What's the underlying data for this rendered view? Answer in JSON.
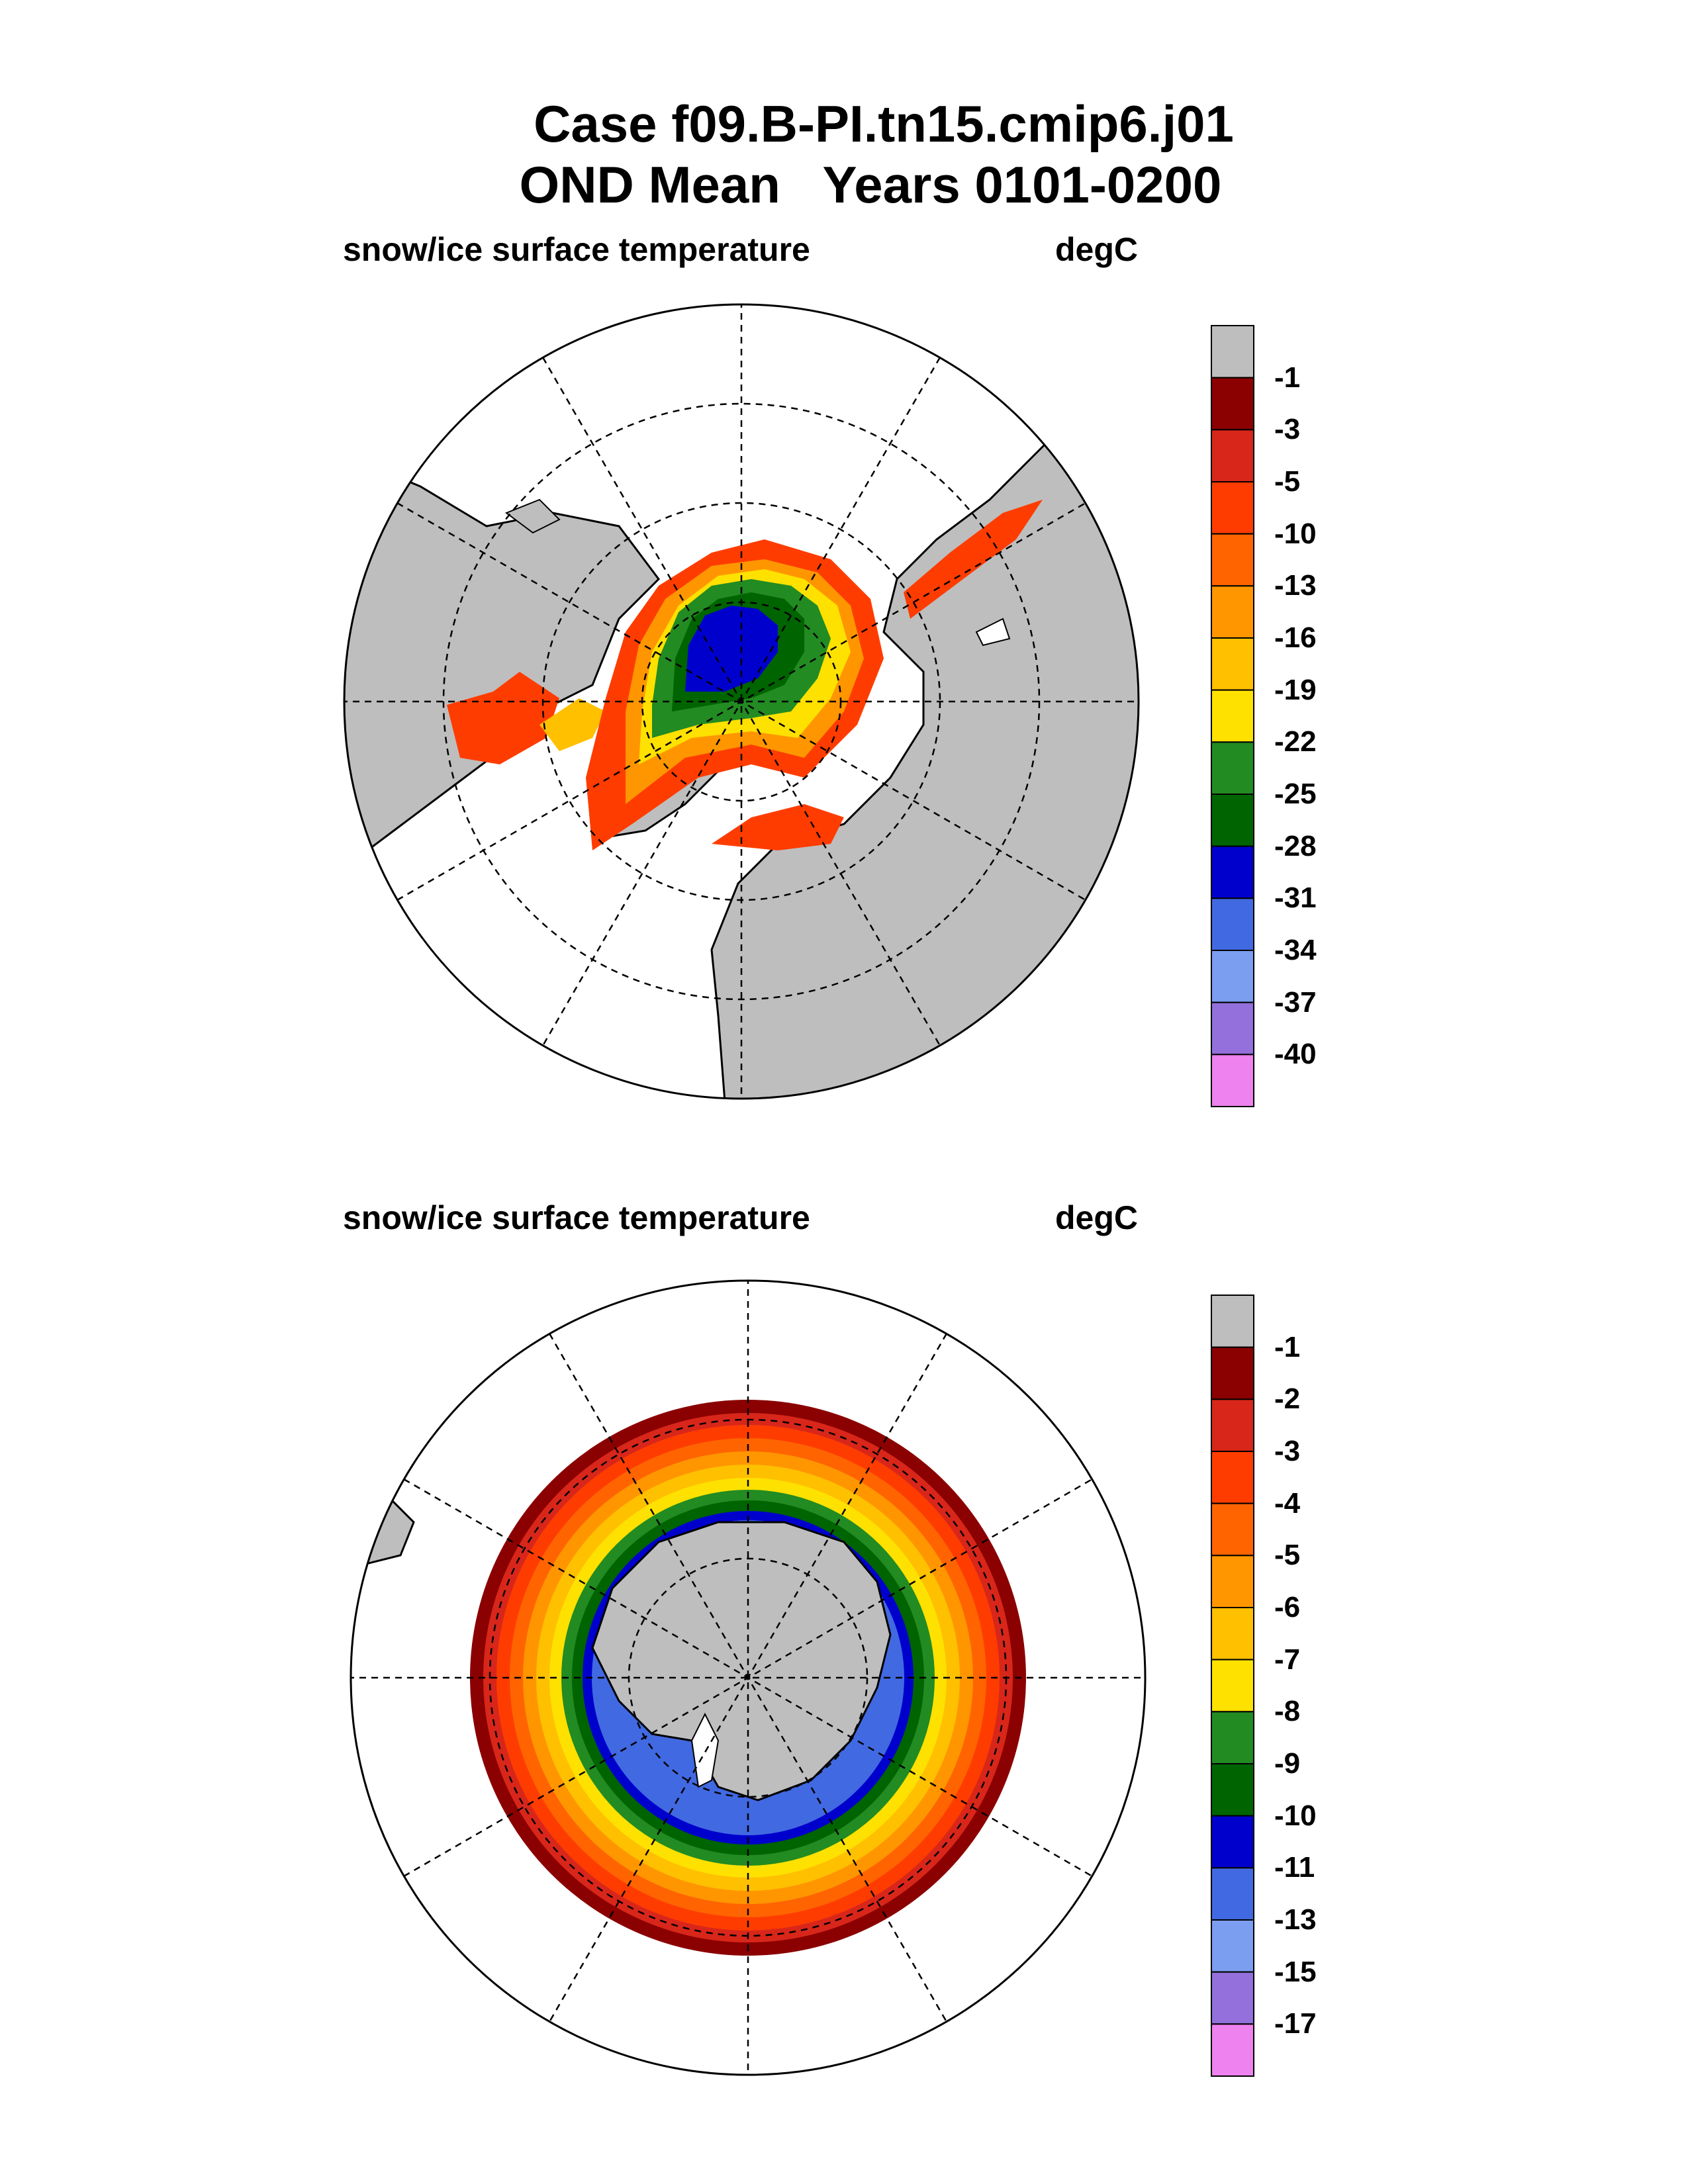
{
  "header": {
    "title_line1": "Case f09.B-PI.tn15.cmip6.j01",
    "title_line2": "OND Mean   Years 0101-0200"
  },
  "panels": [
    {
      "id": "north",
      "variable_label": "snow/ice surface temperature",
      "units_label": "degC",
      "hemisphere": "north",
      "colorbar": {
        "levels": [
          "-1",
          "-3",
          "-5",
          "-10",
          "-13",
          "-16",
          "-19",
          "-22",
          "-25",
          "-28",
          "-31",
          "-34",
          "-37",
          "-40"
        ]
      }
    },
    {
      "id": "south",
      "variable_label": "snow/ice surface temperature",
      "units_label": "degC",
      "hemisphere": "south",
      "colorbar": {
        "levels": [
          "-1",
          "-2",
          "-3",
          "-4",
          "-5",
          "-6",
          "-7",
          "-8",
          "-9",
          "-10",
          "-11",
          "-13",
          "-15",
          "-17"
        ]
      }
    }
  ],
  "colors": {
    "land": "#bebebe",
    "ocean": "#ffffff",
    "scale": [
      "#bebebe",
      "#8b0000",
      "#d8261a",
      "#ff3c00",
      "#ff6400",
      "#ff9600",
      "#ffc000",
      "#ffe100",
      "#228b22",
      "#006400",
      "#0000cd",
      "#4169e1",
      "#7b9ef0",
      "#9370db",
      "#ee82ee"
    ]
  }
}
